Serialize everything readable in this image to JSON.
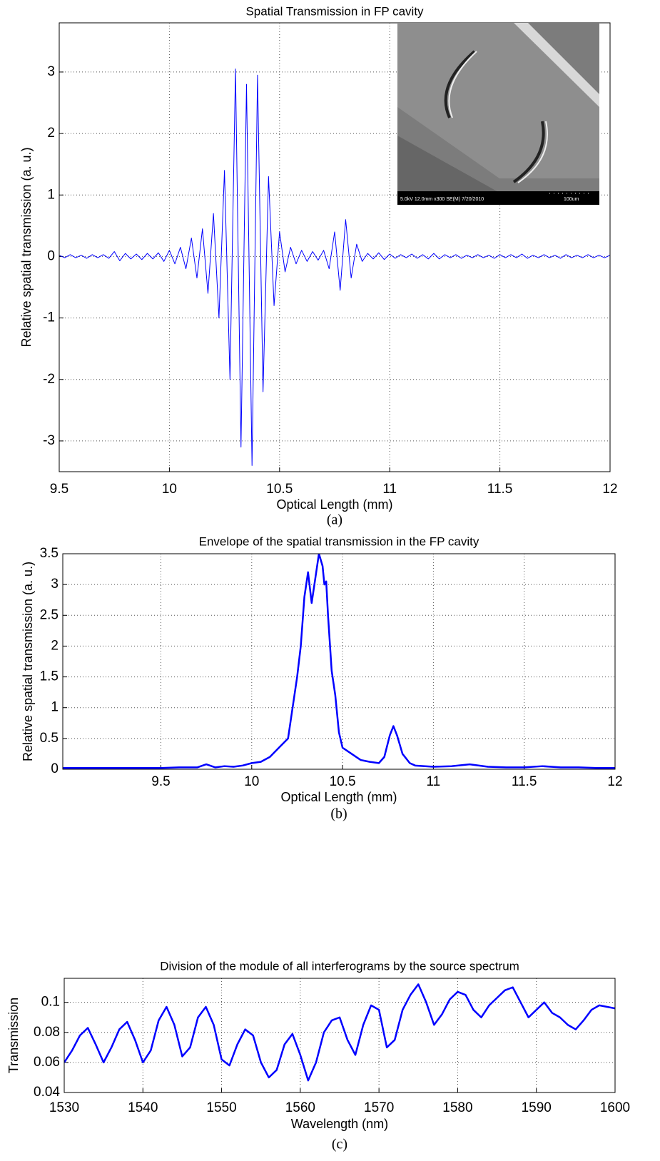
{
  "chart_data": [
    {
      "type": "line",
      "title": "Spatial Transmission in FP cavity",
      "xlabel": "Optical Length (mm)",
      "ylabel": "Relative spatial transmission (a. u.)",
      "caption": "(a)",
      "inset_text": [
        "5.0kV 12.0mm x300 SE(M) 7/20/2010",
        "100um"
      ],
      "color": "#0000ff",
      "grid": true,
      "xlim": [
        9.5,
        12
      ],
      "ylim": [
        -3.5,
        3.8
      ],
      "xticks": [
        9.5,
        10,
        10.5,
        11,
        11.5,
        12
      ],
      "yticks": [
        -3,
        -2,
        -1,
        0,
        1,
        2,
        3
      ],
      "x": [
        9.5,
        9.525,
        9.55,
        9.575,
        9.6,
        9.625,
        9.65,
        9.675,
        9.7,
        9.725,
        9.75,
        9.775,
        9.8,
        9.825,
        9.85,
        9.875,
        9.9,
        9.925,
        9.95,
        9.975,
        10,
        10.025,
        10.05,
        10.075,
        10.1,
        10.125,
        10.15,
        10.175,
        10.2,
        10.225,
        10.25,
        10.275,
        10.3,
        10.325,
        10.35,
        10.375,
        10.4,
        10.425,
        10.45,
        10.475,
        10.5,
        10.525,
        10.55,
        10.575,
        10.6,
        10.625,
        10.65,
        10.675,
        10.7,
        10.725,
        10.75,
        10.775,
        10.8,
        10.825,
        10.85,
        10.875,
        10.9,
        10.925,
        10.95,
        10.975,
        11,
        11.025,
        11.05,
        11.075,
        11.1,
        11.125,
        11.15,
        11.175,
        11.2,
        11.225,
        11.25,
        11.275,
        11.3,
        11.325,
        11.35,
        11.375,
        11.4,
        11.425,
        11.45,
        11.475,
        11.5,
        11.525,
        11.55,
        11.575,
        11.6,
        11.625,
        11.65,
        11.675,
        11.7,
        11.725,
        11.75,
        11.775,
        11.8,
        11.825,
        11.85,
        11.875,
        11.9,
        11.925,
        11.95,
        11.975,
        12
      ],
      "values": [
        0.02,
        -0.02,
        0.03,
        -0.02,
        0.02,
        -0.03,
        0.03,
        -0.02,
        0.03,
        -0.03,
        0.08,
        -0.07,
        0.05,
        -0.04,
        0.04,
        -0.05,
        0.05,
        -0.04,
        0.06,
        -0.08,
        0.1,
        -0.12,
        0.15,
        -0.2,
        0.3,
        -0.35,
        0.45,
        -0.6,
        0.7,
        -1.0,
        1.4,
        -2.0,
        3.05,
        -3.1,
        2.8,
        -3.4,
        2.95,
        -2.2,
        1.3,
        -0.8,
        0.4,
        -0.25,
        0.15,
        -0.12,
        0.1,
        -0.08,
        0.08,
        -0.06,
        0.1,
        -0.2,
        0.4,
        -0.55,
        0.6,
        -0.35,
        0.2,
        -0.08,
        0.05,
        -0.04,
        0.06,
        -0.05,
        0.04,
        -0.03,
        0.03,
        -0.02,
        0.04,
        -0.03,
        0.03,
        -0.04,
        0.05,
        -0.04,
        0.03,
        -0.02,
        0.03,
        -0.03,
        0.02,
        -0.02,
        0.03,
        -0.02,
        0.02,
        -0.03,
        0.03,
        -0.02,
        0.03,
        -0.02,
        0.04,
        -0.03,
        0.02,
        -0.02,
        0.03,
        -0.02,
        0.02,
        -0.03,
        0.03,
        -0.02,
        0.02,
        -0.02,
        0.03,
        -0.02,
        0.02,
        -0.02,
        0.02
      ]
    },
    {
      "type": "line",
      "title": "Envelope of the spatial transmission in the FP cavity",
      "xlabel": "Optical Length (mm)",
      "ylabel": "Relative spatial transmission (a. u.)",
      "caption": "(b)",
      "color": "#0000ff",
      "grid": true,
      "xlim": [
        8.96,
        12
      ],
      "ylim": [
        0,
        3.5
      ],
      "xticks": [
        9.5,
        10,
        10.5,
        11,
        11.5,
        12
      ],
      "yticks": [
        0,
        0.5,
        1,
        1.5,
        2,
        2.5,
        3,
        3.5
      ],
      "x": [
        8.96,
        9.1,
        9.3,
        9.5,
        9.6,
        9.7,
        9.75,
        9.8,
        9.85,
        9.9,
        9.95,
        10.0,
        10.05,
        10.1,
        10.15,
        10.2,
        10.22,
        10.25,
        10.27,
        10.29,
        10.31,
        10.33,
        10.35,
        10.37,
        10.39,
        10.4,
        10.41,
        10.42,
        10.44,
        10.46,
        10.48,
        10.5,
        10.55,
        10.6,
        10.65,
        10.7,
        10.73,
        10.76,
        10.78,
        10.8,
        10.83,
        10.87,
        10.9,
        11.0,
        11.1,
        11.2,
        11.3,
        11.4,
        11.5,
        11.6,
        11.7,
        11.8,
        11.9,
        12.0
      ],
      "values": [
        0.02,
        0.02,
        0.02,
        0.02,
        0.03,
        0.03,
        0.08,
        0.03,
        0.05,
        0.04,
        0.06,
        0.1,
        0.12,
        0.2,
        0.35,
        0.5,
        0.9,
        1.5,
        2.0,
        2.8,
        3.2,
        2.7,
        3.1,
        3.5,
        3.3,
        3.0,
        3.05,
        2.5,
        1.6,
        1.2,
        0.6,
        0.35,
        0.25,
        0.15,
        0.12,
        0.1,
        0.2,
        0.55,
        0.7,
        0.55,
        0.25,
        0.1,
        0.06,
        0.04,
        0.05,
        0.08,
        0.04,
        0.03,
        0.03,
        0.05,
        0.03,
        0.03,
        0.02,
        0.02
      ]
    },
    {
      "type": "line",
      "title": "Division of the module of all interferograms by the source spectrum",
      "xlabel": "Wavelength (nm)",
      "ylabel": "Transmission",
      "caption": "(c)",
      "color": "#0000ff",
      "grid": true,
      "xlim": [
        1530,
        1600
      ],
      "ylim": [
        0.04,
        0.116
      ],
      "xticks": [
        1530,
        1540,
        1550,
        1560,
        1570,
        1580,
        1590,
        1600
      ],
      "yticks": [
        0.04,
        0.06,
        0.08,
        0.1
      ],
      "x": [
        1530,
        1531,
        1532,
        1533,
        1534,
        1535,
        1536,
        1537,
        1538,
        1539,
        1540,
        1541,
        1542,
        1543,
        1544,
        1545,
        1546,
        1547,
        1548,
        1549,
        1550,
        1551,
        1552,
        1553,
        1554,
        1555,
        1556,
        1557,
        1558,
        1559,
        1560,
        1561,
        1562,
        1563,
        1564,
        1565,
        1566,
        1567,
        1568,
        1569,
        1570,
        1571,
        1572,
        1573,
        1574,
        1575,
        1576,
        1577,
        1578,
        1579,
        1580,
        1581,
        1582,
        1583,
        1584,
        1585,
        1586,
        1587,
        1588,
        1589,
        1590,
        1591,
        1592,
        1593,
        1594,
        1595,
        1596,
        1597,
        1598,
        1599,
        1600
      ],
      "values": [
        0.06,
        0.068,
        0.078,
        0.083,
        0.072,
        0.06,
        0.07,
        0.082,
        0.087,
        0.075,
        0.06,
        0.068,
        0.088,
        0.097,
        0.085,
        0.064,
        0.07,
        0.09,
        0.097,
        0.085,
        0.062,
        0.058,
        0.072,
        0.082,
        0.078,
        0.06,
        0.05,
        0.055,
        0.072,
        0.079,
        0.065,
        0.048,
        0.06,
        0.08,
        0.088,
        0.09,
        0.075,
        0.065,
        0.085,
        0.098,
        0.095,
        0.07,
        0.075,
        0.095,
        0.105,
        0.112,
        0.1,
        0.085,
        0.092,
        0.102,
        0.107,
        0.105,
        0.095,
        0.09,
        0.098,
        0.103,
        0.108,
        0.11,
        0.1,
        0.09,
        0.095,
        0.1,
        0.093,
        0.09,
        0.085,
        0.082,
        0.088,
        0.095,
        0.098,
        0.097,
        0.096
      ]
    }
  ]
}
